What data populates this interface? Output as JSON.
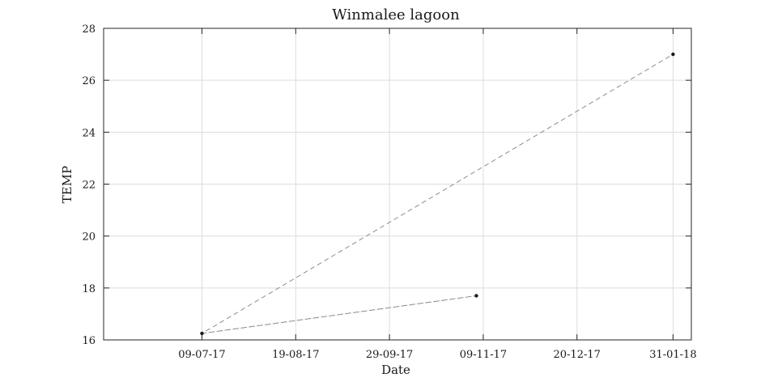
{
  "chart_data": {
    "type": "line",
    "title": "Winmalee lagoon",
    "xlabel": "Date",
    "ylabel": "TEMP",
    "x_ticks": [
      "09-07-17",
      "19-08-17",
      "29-09-17",
      "09-11-17",
      "20-12-17",
      "31-01-18"
    ],
    "y_ticks": [
      "16",
      "18",
      "20",
      "22",
      "24",
      "26",
      "28"
    ],
    "xlim": [
      "2017-05-27",
      "2018-02-08"
    ],
    "ylim": [
      16,
      28
    ],
    "grid": true,
    "legend": "none",
    "series": [
      {
        "x": [
          "2017-07-09",
          "2017-11-06",
          "2017-07-09",
          "2018-01-31"
        ],
        "y": [
          16.25,
          17.7,
          16.25,
          27.0
        ],
        "line_style": "dashed",
        "line_color": "#8c8c8c",
        "marker_color": "#1a1a1a"
      }
    ]
  }
}
